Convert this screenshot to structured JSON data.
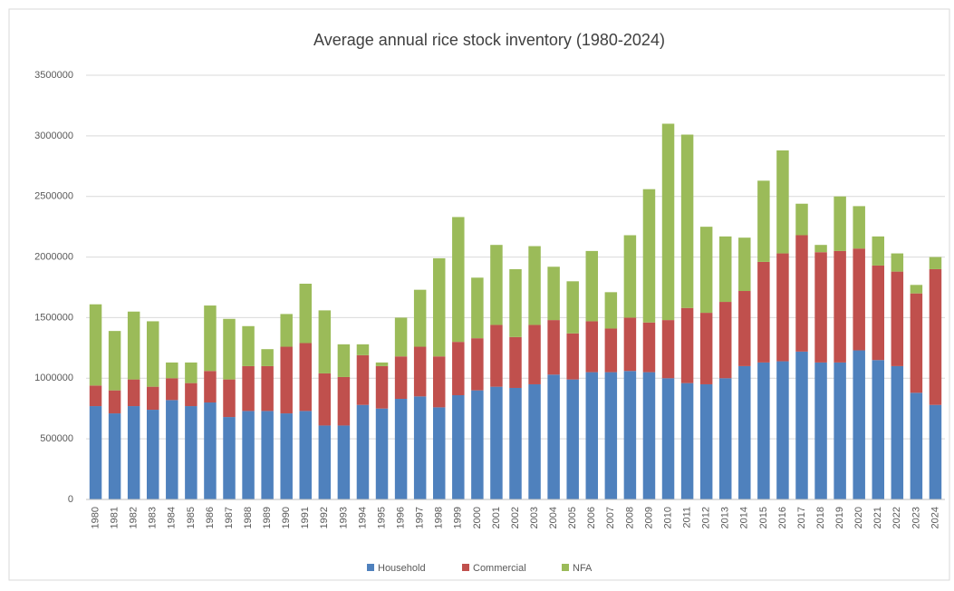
{
  "chart_data": {
    "type": "stacked_bar",
    "title": "Average annual rice stock inventory (1980-2024)",
    "categories": [
      "1980",
      "1981",
      "1982",
      "1983",
      "1984",
      "1985",
      "1986",
      "1987",
      "1988",
      "1989",
      "1990",
      "1991",
      "1992",
      "1993",
      "1994",
      "1995",
      "1996",
      "1997",
      "1998",
      "1999",
      "2000",
      "2001",
      "2002",
      "2003",
      "2004",
      "2005",
      "2006",
      "2007",
      "2008",
      "2009",
      "2010",
      "2011",
      "2012",
      "2013",
      "2014",
      "2015",
      "2016",
      "2017",
      "2018",
      "2019",
      "2020",
      "2021",
      "2022",
      "2023",
      "2024"
    ],
    "series": [
      {
        "name": "Household",
        "color": "#4f81bd",
        "values": [
          770000,
          710000,
          770000,
          740000,
          820000,
          770000,
          800000,
          680000,
          730000,
          730000,
          710000,
          730000,
          610000,
          610000,
          780000,
          750000,
          830000,
          850000,
          760000,
          860000,
          900000,
          930000,
          920000,
          950000,
          1030000,
          990000,
          1050000,
          1050000,
          1060000,
          1050000,
          1000000,
          960000,
          950000,
          1000000,
          1100000,
          1130000,
          1140000,
          1220000,
          1130000,
          1130000,
          1230000,
          1150000,
          1100000,
          880000,
          780000
        ]
      },
      {
        "name": "Commercial",
        "color": "#c0504d",
        "values": [
          170000,
          190000,
          220000,
          190000,
          180000,
          190000,
          260000,
          310000,
          370000,
          370000,
          550000,
          560000,
          430000,
          400000,
          410000,
          350000,
          350000,
          410000,
          420000,
          440000,
          430000,
          510000,
          420000,
          490000,
          450000,
          380000,
          420000,
          360000,
          440000,
          410000,
          480000,
          620000,
          590000,
          630000,
          620000,
          830000,
          890000,
          960000,
          910000,
          920000,
          840000,
          780000,
          780000,
          820000,
          1120000
        ]
      },
      {
        "name": "NFA",
        "color": "#9bbb59",
        "values": [
          670000,
          490000,
          560000,
          540000,
          130000,
          170000,
          540000,
          500000,
          330000,
          140000,
          270000,
          490000,
          520000,
          270000,
          90000,
          30000,
          320000,
          470000,
          810000,
          1030000,
          500000,
          660000,
          560000,
          650000,
          440000,
          430000,
          580000,
          300000,
          680000,
          1100000,
          1620000,
          1430000,
          710000,
          540000,
          440000,
          670000,
          850000,
          260000,
          60000,
          450000,
          350000,
          240000,
          150000,
          70000,
          100000
        ]
      }
    ],
    "ylim": [
      0,
      3500000
    ],
    "yticks": [
      0,
      500000,
      1000000,
      1500000,
      2000000,
      2500000,
      3000000,
      3500000
    ],
    "grid": true,
    "legend": "bottom"
  }
}
